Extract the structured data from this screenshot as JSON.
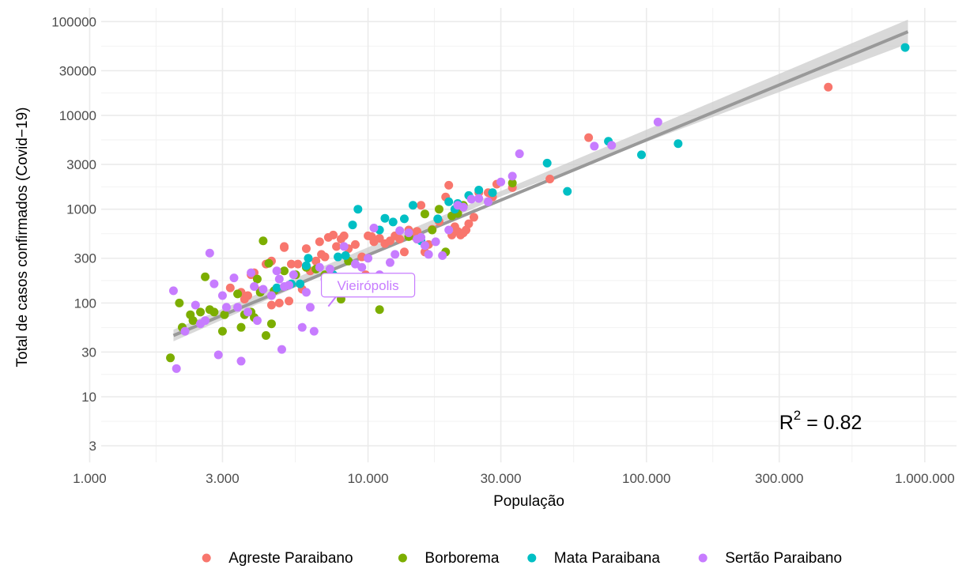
{
  "chart_data": {
    "type": "scatter",
    "xlabel": "População",
    "ylabel": "Total de casos confirmados (Covid−19)",
    "x_scale": "log10",
    "y_scale": "log10",
    "xlim": [
      1100,
      1300000
    ],
    "ylim": [
      2,
      140000
    ],
    "x_ticks": [
      {
        "value": 1000,
        "label": "1.000"
      },
      {
        "value": 3000,
        "label": "3.000"
      },
      {
        "value": 10000,
        "label": "10.000"
      },
      {
        "value": 30000,
        "label": "30.000"
      },
      {
        "value": 100000,
        "label": "100.000"
      },
      {
        "value": 300000,
        "label": "300.000"
      },
      {
        "value": 1000000,
        "label": "1.000.000"
      }
    ],
    "y_ticks": [
      {
        "value": 3,
        "label": "3"
      },
      {
        "value": 10,
        "label": "10"
      },
      {
        "value": 30,
        "label": "30"
      },
      {
        "value": 100,
        "label": "100"
      },
      {
        "value": 300,
        "label": "300"
      },
      {
        "value": 1000,
        "label": "1000"
      },
      {
        "value": 3000,
        "label": "3000"
      },
      {
        "value": 10000,
        "label": "10000"
      },
      {
        "value": 30000,
        "label": "30000"
      },
      {
        "value": 100000,
        "label": "100000"
      }
    ],
    "grid": true,
    "legend_position": "bottom",
    "series": [
      {
        "name": "Agreste Paraibano",
        "color": "#F8766D",
        "points": [
          [
            3200,
            145
          ],
          [
            3500,
            130
          ],
          [
            3600,
            110
          ],
          [
            3700,
            120
          ],
          [
            3800,
            200
          ],
          [
            3900,
            210
          ],
          [
            4100,
            135
          ],
          [
            4300,
            260
          ],
          [
            4500,
            280
          ],
          [
            4500,
            95
          ],
          [
            4800,
            100
          ],
          [
            5000,
            400
          ],
          [
            5000,
            390
          ],
          [
            5200,
            105
          ],
          [
            5300,
            260
          ],
          [
            5600,
            260
          ],
          [
            5800,
            140
          ],
          [
            6000,
            380
          ],
          [
            6200,
            220
          ],
          [
            6500,
            280
          ],
          [
            6700,
            450
          ],
          [
            6800,
            330
          ],
          [
            7000,
            310
          ],
          [
            7200,
            500
          ],
          [
            7500,
            530
          ],
          [
            7700,
            400
          ],
          [
            8000,
            480
          ],
          [
            8200,
            520
          ],
          [
            8500,
            380
          ],
          [
            9000,
            420
          ],
          [
            9500,
            310
          ],
          [
            9800,
            200
          ],
          [
            10000,
            520
          ],
          [
            10000,
            180
          ],
          [
            10300,
            510
          ],
          [
            10500,
            450
          ],
          [
            11000,
            490
          ],
          [
            11500,
            430
          ],
          [
            12000,
            460
          ],
          [
            12500,
            520
          ],
          [
            13000,
            480
          ],
          [
            13500,
            350
          ],
          [
            14000,
            600
          ],
          [
            14500,
            520
          ],
          [
            15000,
            580
          ],
          [
            15500,
            1100
          ],
          [
            16000,
            350
          ],
          [
            16500,
            420
          ],
          [
            17000,
            610
          ],
          [
            18000,
            740
          ],
          [
            19000,
            1350
          ],
          [
            19500,
            1800
          ],
          [
            20000,
            530
          ],
          [
            20500,
            650
          ],
          [
            21000,
            580
          ],
          [
            21500,
            530
          ],
          [
            22000,
            560
          ],
          [
            22500,
            600
          ],
          [
            23000,
            700
          ],
          [
            24000,
            820
          ],
          [
            25000,
            1500
          ],
          [
            27000,
            1500
          ],
          [
            28000,
            1350
          ],
          [
            29000,
            1850
          ],
          [
            33000,
            1700
          ],
          [
            45000,
            2100
          ],
          [
            62000,
            5800
          ],
          [
            450000,
            20000
          ]
        ]
      },
      {
        "name": "Borborema",
        "color": "#7CAE00",
        "points": [
          [
            1950,
            26
          ],
          [
            2100,
            100
          ],
          [
            2150,
            55
          ],
          [
            2300,
            75
          ],
          [
            2350,
            65
          ],
          [
            2500,
            80
          ],
          [
            2600,
            190
          ],
          [
            2700,
            85
          ],
          [
            2800,
            80
          ],
          [
            3000,
            50
          ],
          [
            3050,
            75
          ],
          [
            3400,
            125
          ],
          [
            3500,
            55
          ],
          [
            3600,
            75
          ],
          [
            3800,
            80
          ],
          [
            3900,
            70
          ],
          [
            4000,
            180
          ],
          [
            4100,
            130
          ],
          [
            4200,
            460
          ],
          [
            4300,
            45
          ],
          [
            4400,
            265
          ],
          [
            4500,
            60
          ],
          [
            4600,
            135
          ],
          [
            5000,
            220
          ],
          [
            5500,
            200
          ],
          [
            6000,
            240
          ],
          [
            6500,
            230
          ],
          [
            7000,
            200
          ],
          [
            8000,
            110
          ],
          [
            8500,
            280
          ],
          [
            11000,
            85
          ],
          [
            14000,
            510
          ],
          [
            15000,
            480
          ],
          [
            16000,
            890
          ],
          [
            17000,
            600
          ],
          [
            18000,
            1000
          ],
          [
            19000,
            350
          ],
          [
            20000,
            850
          ],
          [
            21000,
            900
          ],
          [
            22000,
            1100
          ],
          [
            33000,
            1900
          ]
        ]
      },
      {
        "name": "Mata Paraibana",
        "color": "#00BFC4",
        "points": [
          [
            4700,
            145
          ],
          [
            5300,
            160
          ],
          [
            5700,
            160
          ],
          [
            6000,
            250
          ],
          [
            6100,
            300
          ],
          [
            7500,
            200
          ],
          [
            7800,
            310
          ],
          [
            8300,
            320
          ],
          [
            8800,
            680
          ],
          [
            9200,
            1000
          ],
          [
            11000,
            600
          ],
          [
            11500,
            800
          ],
          [
            12300,
            730
          ],
          [
            13500,
            790
          ],
          [
            14500,
            1100
          ],
          [
            15500,
            460
          ],
          [
            17800,
            790
          ],
          [
            19500,
            1200
          ],
          [
            20500,
            1000
          ],
          [
            21000,
            1150
          ],
          [
            23000,
            1400
          ],
          [
            25000,
            1600
          ],
          [
            28000,
            1500
          ],
          [
            44000,
            3100
          ],
          [
            52000,
            1550
          ],
          [
            73000,
            5300
          ],
          [
            96000,
            3800
          ],
          [
            130000,
            5000
          ],
          [
            850000,
            53000
          ]
        ]
      },
      {
        "name": "Sertão Paraibano",
        "color": "#C77CFF",
        "points": [
          [
            2000,
            135
          ],
          [
            2050,
            20
          ],
          [
            2200,
            50
          ],
          [
            2400,
            95
          ],
          [
            2500,
            60
          ],
          [
            2600,
            65
          ],
          [
            2700,
            340
          ],
          [
            2800,
            160
          ],
          [
            2900,
            28
          ],
          [
            3000,
            120
          ],
          [
            3100,
            90
          ],
          [
            3300,
            185
          ],
          [
            3400,
            90
          ],
          [
            3500,
            24
          ],
          [
            3700,
            80
          ],
          [
            3800,
            210
          ],
          [
            3900,
            150
          ],
          [
            4000,
            65
          ],
          [
            4200,
            140
          ],
          [
            4500,
            120
          ],
          [
            4700,
            220
          ],
          [
            4800,
            180
          ],
          [
            4900,
            32
          ],
          [
            5000,
            150
          ],
          [
            5200,
            155
          ],
          [
            5400,
            200
          ],
          [
            5800,
            55
          ],
          [
            6000,
            130
          ],
          [
            6200,
            90
          ],
          [
            6400,
            50
          ],
          [
            6700,
            240
          ],
          [
            7000,
            180
          ],
          [
            7300,
            230
          ],
          [
            7800,
            130
          ],
          [
            8200,
            400
          ],
          [
            8600,
            160
          ],
          [
            9000,
            260
          ],
          [
            9500,
            240
          ],
          [
            10000,
            300
          ],
          [
            10500,
            630
          ],
          [
            11000,
            200
          ],
          [
            11500,
            180
          ],
          [
            12000,
            270
          ],
          [
            12500,
            330
          ],
          [
            13000,
            590
          ],
          [
            14000,
            560
          ],
          [
            15000,
            480
          ],
          [
            15500,
            500
          ],
          [
            16000,
            410
          ],
          [
            16500,
            330
          ],
          [
            17500,
            450
          ],
          [
            18500,
            320
          ],
          [
            19500,
            600
          ],
          [
            21000,
            1100
          ],
          [
            22000,
            1050
          ],
          [
            23500,
            1280
          ],
          [
            25000,
            1300
          ],
          [
            27000,
            1200
          ],
          [
            30000,
            1950
          ],
          [
            33000,
            2250
          ],
          [
            35000,
            3900
          ],
          [
            65000,
            4700
          ],
          [
            75000,
            4800
          ],
          [
            110000,
            8500
          ]
        ]
      }
    ],
    "fit_line": {
      "color": "#999999",
      "band_color": "#cccccc",
      "points": [
        [
          2000,
          45
        ],
        [
          870000,
          78000
        ]
      ],
      "band_upper": [
        [
          2000,
          52
        ],
        [
          30000,
          1560
        ],
        [
          870000,
          105000
        ]
      ],
      "band_lower": [
        [
          2000,
          39
        ],
        [
          30000,
          1370
        ],
        [
          870000,
          58000
        ]
      ]
    },
    "annotation": {
      "label": "Vieirópolis",
      "color": "#C77CFF",
      "point": [
        7200,
        92
      ],
      "label_at": [
        10000,
        155
      ]
    },
    "r2": {
      "base": "R",
      "superscript": "2",
      "rest": " = 0.82",
      "at": [
        300000,
        4.5
      ]
    }
  }
}
